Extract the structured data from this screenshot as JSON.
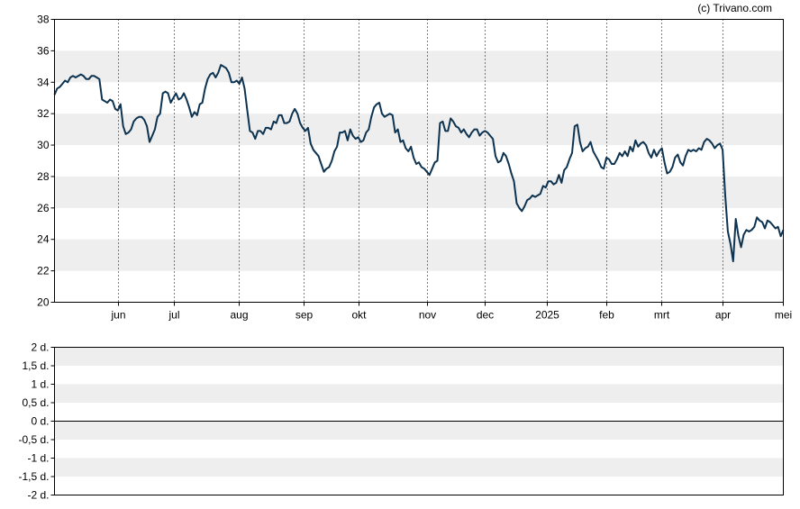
{
  "credit": "(c) Trivano.com",
  "chart_data": [
    {
      "type": "line",
      "title": "",
      "xlabel": "",
      "ylabel": "",
      "x_tick_labels": [
        "jun",
        "jul",
        "aug",
        "sep",
        "okt",
        "nov",
        "dec",
        "2025",
        "feb",
        "mrt",
        "apr",
        "mei"
      ],
      "y_ticks": [
        20,
        22,
        24,
        26,
        28,
        30,
        32,
        34,
        36,
        38
      ],
      "ylim": [
        20,
        38
      ],
      "grid": "vertical dotted at month starts, alternating horizontal bands",
      "line_color": "#0d3350",
      "band_color": "#eeeeee",
      "series": [
        {
          "values": [
            33.2,
            33.6,
            33.7,
            33.9,
            34.1,
            34.0,
            34.3,
            34.4,
            34.3,
            34.4,
            34.5,
            34.4,
            34.2,
            34.2,
            34.4,
            34.4,
            34.3,
            34.2,
            32.9,
            32.8,
            32.7,
            32.9,
            32.8,
            32.3,
            32.2,
            32.6,
            31.2,
            30.7,
            30.8,
            31.0,
            31.5,
            31.7,
            31.8,
            31.8,
            31.6,
            31.2,
            30.2,
            30.6,
            31.0,
            31.8,
            32.0,
            33.3,
            33.4,
            33.3,
            32.7,
            33.0,
            33.3,
            32.9,
            33.0,
            33.3,
            32.9,
            32.4,
            31.8,
            32.1,
            31.9,
            32.6,
            32.7,
            33.6,
            34.2,
            34.5,
            34.6,
            34.3,
            34.6,
            35.1,
            35.0,
            34.9,
            34.6,
            34.0,
            34.0,
            34.1,
            33.9,
            34.3,
            33.6,
            32.2,
            30.9,
            30.8,
            30.4,
            30.9,
            30.9,
            30.7,
            31.1,
            31.1,
            31.0,
            31.5,
            31.4,
            31.9,
            31.9,
            31.4,
            31.4,
            31.5,
            32.0,
            32.3,
            32.0,
            31.4,
            31.1,
            30.9,
            31.1,
            30.1,
            29.7,
            29.5,
            29.3,
            28.8,
            28.3,
            28.5,
            28.6,
            29.0,
            29.6,
            29.9,
            30.8,
            30.8,
            30.9,
            30.3,
            31.0,
            30.6,
            30.4,
            30.5,
            30.2,
            30.3,
            30.8,
            31.0,
            31.8,
            32.4,
            32.6,
            32.7,
            32.0,
            31.8,
            31.9,
            32.0,
            31.9,
            30.8,
            31.0,
            30.2,
            30.3,
            29.8,
            29.6,
            29.9,
            29.2,
            28.8,
            28.9,
            28.6,
            28.5,
            28.3,
            28.1,
            28.5,
            28.9,
            29.0,
            31.4,
            31.5,
            30.9,
            30.9,
            31.7,
            31.5,
            31.2,
            31.1,
            30.8,
            31.0,
            30.7,
            30.5,
            30.8,
            31.0,
            31.0,
            30.6,
            30.8,
            30.9,
            30.8,
            30.6,
            30.4,
            29.3,
            28.9,
            29.0,
            29.5,
            29.3,
            28.8,
            28.2,
            27.7,
            26.3,
            26.0,
            25.8,
            26.1,
            26.5,
            26.6,
            26.8,
            26.7,
            26.8,
            26.9,
            27.4,
            27.3,
            27.7,
            27.7,
            27.5,
            27.6,
            28.1,
            27.6,
            28.4,
            28.6,
            29.1,
            29.5,
            31.2,
            31.3,
            30.2,
            29.6,
            29.8,
            29.9,
            30.2,
            29.6,
            29.3,
            29.0,
            28.6,
            28.5,
            29.2,
            29.1,
            28.8,
            28.8,
            29.1,
            29.5,
            29.3,
            29.6,
            29.3,
            29.9,
            29.6,
            30.3,
            29.9,
            30.1,
            30.2,
            30.0,
            29.5,
            29.2,
            29.7,
            29.3,
            29.6,
            29.8,
            28.9,
            28.2,
            28.3,
            28.6,
            29.2,
            29.4,
            28.9,
            28.7,
            29.3,
            29.7,
            29.6,
            29.7,
            29.6,
            29.8,
            29.7,
            30.2,
            30.4,
            30.3,
            30.1,
            29.8,
            30.0,
            30.1,
            29.7,
            26.8,
            24.5,
            23.7,
            22.6,
            25.3,
            24.2,
            23.5,
            24.3,
            24.6,
            24.5,
            24.6,
            24.8,
            25.4,
            25.2,
            25.1,
            24.7,
            25.2,
            25.1,
            24.9,
            24.7,
            24.8,
            24.2,
            24.6
          ]
        }
      ]
    },
    {
      "type": "bar",
      "title": "",
      "xlabel": "",
      "ylabel": "",
      "y_tick_labels": [
        "2 d.",
        "1,5 d.",
        "1 d.",
        "0,5 d.",
        "0 d.",
        "-0,5 d.",
        "-1 d.",
        "-1,5 d.",
        "-2 d."
      ],
      "ylim": [
        -2,
        2
      ],
      "band_color": "#eeeeee",
      "values": []
    }
  ]
}
